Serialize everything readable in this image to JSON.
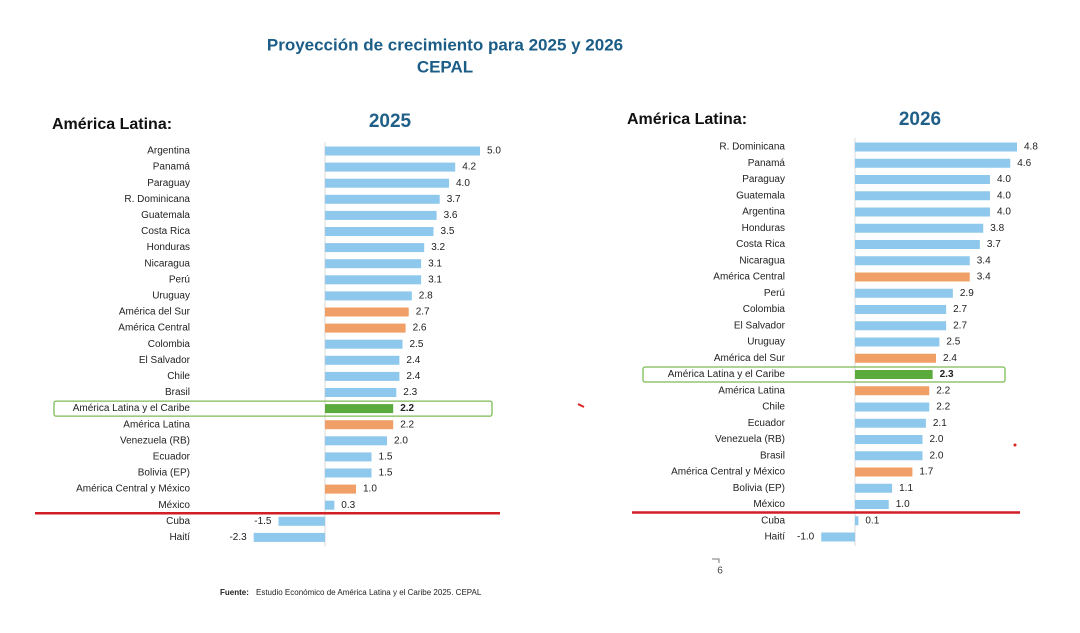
{
  "header": {
    "title": "Proyección de crecimiento para 2025 y 2026",
    "subtitle": "CEPAL"
  },
  "source": {
    "label": "Fuente:",
    "text": "Estudio Económico de América Latina y el Caribe 2025. CEPAL"
  },
  "page_number": "6",
  "chart_data": [
    {
      "type": "bar",
      "orientation": "horizontal",
      "label": "América Latina:",
      "title": "2025",
      "categories": [
        "Argentina",
        "Panamá",
        "Paraguay",
        "R. Dominicana",
        "Guatemala",
        "Costa Rica",
        "Honduras",
        "Nicaragua",
        "Perú",
        "Uruguay",
        "América del Sur",
        "América Central",
        "Colombia",
        "El Salvador",
        "Chile",
        "Brasil",
        "América Latina y el Caribe",
        "América Latina",
        "Venezuela (RB)",
        "Ecuador",
        "Bolivia (EP)",
        "América Central y México",
        "México",
        "Cuba",
        "Haití"
      ],
      "values": [
        5.0,
        4.2,
        4.0,
        3.7,
        3.6,
        3.5,
        3.2,
        3.1,
        3.1,
        2.8,
        2.7,
        2.6,
        2.5,
        2.4,
        2.4,
        2.3,
        2.2,
        2.2,
        2.0,
        1.5,
        1.5,
        1.0,
        0.3,
        -1.5,
        -2.3
      ],
      "value_labels": [
        "5.0",
        "4.2",
        "4.0",
        "3.7",
        "3.6",
        "3.5",
        "3.2",
        "3.1",
        "3.1",
        "2.8",
        "2.7",
        "2.6",
        "2.5",
        "2.4",
        "2.4",
        "2.3",
        "2.2",
        "2.2",
        "2.0",
        "1.5",
        "1.5",
        "1.0",
        "0.3",
        "-1.5",
        "-2.3"
      ],
      "colors": [
        "#8ec8ec",
        "#8ec8ec",
        "#8ec8ec",
        "#8ec8ec",
        "#8ec8ec",
        "#8ec8ec",
        "#8ec8ec",
        "#8ec8ec",
        "#8ec8ec",
        "#8ec8ec",
        "#f0a066",
        "#f0a066",
        "#8ec8ec",
        "#8ec8ec",
        "#8ec8ec",
        "#8ec8ec",
        "#5aab3c",
        "#f0a066",
        "#8ec8ec",
        "#8ec8ec",
        "#8ec8ec",
        "#f0a066",
        "#8ec8ec",
        "#8ec8ec",
        "#8ec8ec"
      ],
      "xlim": [
        -4.2,
        5.5
      ]
    },
    {
      "type": "bar",
      "orientation": "horizontal",
      "label": "América Latina:",
      "title": "2026",
      "categories": [
        "R. Dominicana",
        "Panamá",
        "Paraguay",
        "Guatemala",
        "Argentina",
        "Honduras",
        "Costa Rica",
        "Nicaragua",
        "América Central",
        "Perú",
        "Colombia",
        "El Salvador",
        "Uruguay",
        "América del Sur",
        "América Latina y el Caribe",
        "América Latina",
        "Chile",
        "Ecuador",
        "Venezuela (RB)",
        "Brasil",
        "América Central y México",
        "Bolivia (EP)",
        "México",
        "Cuba",
        "Haití"
      ],
      "values": [
        4.8,
        4.6,
        4.0,
        4.0,
        4.0,
        3.8,
        3.7,
        3.4,
        3.4,
        2.9,
        2.7,
        2.7,
        2.5,
        2.4,
        2.3,
        2.2,
        2.2,
        2.1,
        2.0,
        2.0,
        1.7,
        1.1,
        1.0,
        0.1,
        -1.0
      ],
      "value_labels": [
        "4.8",
        "4.6",
        "4.0",
        "4.0",
        "4.0",
        "3.8",
        "3.7",
        "3.4",
        "3.4",
        "2.9",
        "2.7",
        "2.7",
        "2.5",
        "2.4",
        "2.3",
        "2.2",
        "2.2",
        "2.1",
        "2.0",
        "2.0",
        "1.7",
        "1.1",
        "1.0",
        "0.1",
        "-1.0"
      ],
      "colors": [
        "#8ec8ec",
        "#8ec8ec",
        "#8ec8ec",
        "#8ec8ec",
        "#8ec8ec",
        "#8ec8ec",
        "#8ec8ec",
        "#8ec8ec",
        "#f0a066",
        "#8ec8ec",
        "#8ec8ec",
        "#8ec8ec",
        "#8ec8ec",
        "#f0a066",
        "#5aab3c",
        "#f0a066",
        "#8ec8ec",
        "#8ec8ec",
        "#8ec8ec",
        "#8ec8ec",
        "#f0a066",
        "#8ec8ec",
        "#8ec8ec",
        "#8ec8ec",
        "#8ec8ec"
      ],
      "xlim": [
        -2.9,
        5.5
      ]
    }
  ]
}
